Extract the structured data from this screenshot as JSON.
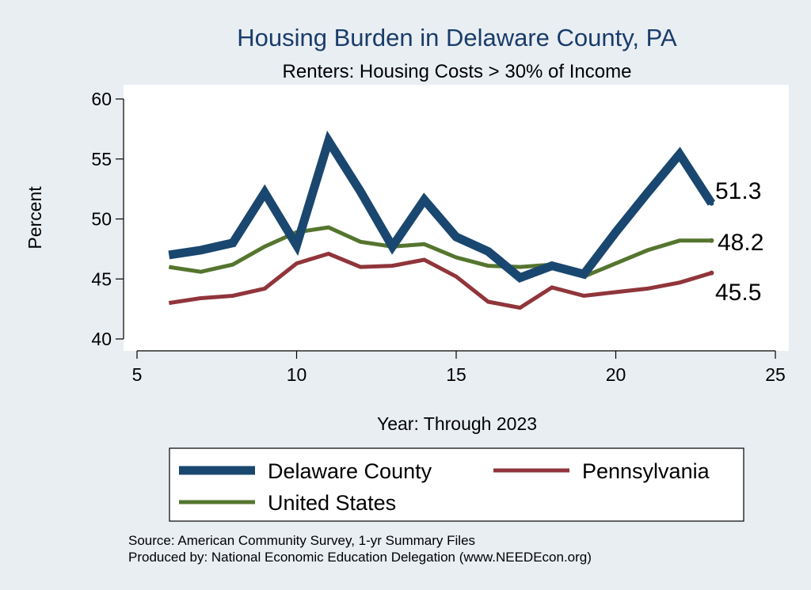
{
  "chart_data": {
    "type": "line",
    "title": "Housing Burden in Delaware County, PA",
    "subtitle": "Renters: Housing Costs > 30% of Income",
    "xlabel": "Year: Through 2023",
    "ylabel": "Percent",
    "xlim": [
      5,
      25
    ],
    "ylim": [
      40,
      60
    ],
    "xticks": [
      "5",
      "10",
      "15",
      "20",
      "25"
    ],
    "yticks": [
      "40",
      "45",
      "50",
      "55",
      "60"
    ],
    "grid": false,
    "legend_position": "bottom",
    "series": [
      {
        "name": "Delaware County",
        "color": "#1a476f",
        "x": [
          6,
          7,
          8,
          9,
          10,
          11,
          12,
          13,
          14,
          15,
          16,
          17,
          18,
          19,
          20,
          21,
          22,
          23
        ],
        "values": [
          47.0,
          47.4,
          48.0,
          52.2,
          47.8,
          56.5,
          52.3,
          47.7,
          51.6,
          48.5,
          47.3,
          45.1,
          46.1,
          45.4,
          48.9,
          52.2,
          55.4,
          51.3
        ],
        "end_label": "51.3"
      },
      {
        "name": "Pennsylvania",
        "color": "#90353b",
        "x": [
          6,
          7,
          8,
          9,
          10,
          11,
          12,
          13,
          14,
          15,
          16,
          17,
          18,
          19,
          20,
          21,
          22,
          23
        ],
        "values": [
          43.0,
          43.4,
          43.6,
          44.2,
          46.3,
          47.1,
          46.0,
          46.1,
          46.6,
          45.2,
          43.1,
          42.6,
          44.3,
          43.6,
          43.9,
          44.2,
          44.7,
          45.5
        ],
        "end_label": "45.5"
      },
      {
        "name": "United States",
        "color": "#55752f",
        "x": [
          6,
          7,
          8,
          9,
          10,
          11,
          12,
          13,
          14,
          15,
          16,
          17,
          18,
          19,
          20,
          21,
          22,
          23
        ],
        "values": [
          46.0,
          45.6,
          46.2,
          47.7,
          48.9,
          49.3,
          48.1,
          47.7,
          47.9,
          46.8,
          46.1,
          46.0,
          46.2,
          45.2,
          46.3,
          47.4,
          48.2,
          48.2
        ],
        "end_label": "48.2"
      }
    ]
  },
  "footer": {
    "source": "Source: American Community Survey, 1-yr Summary Files",
    "produced": "Produced by: National Economic Education Delegation (www.NEEDEcon.org)"
  }
}
